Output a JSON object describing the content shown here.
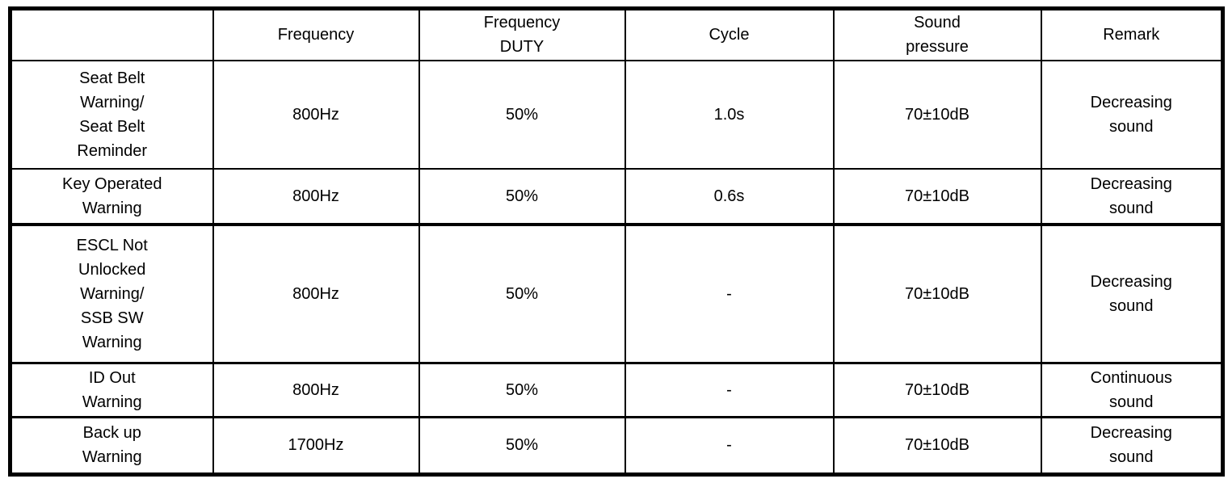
{
  "page": {
    "background_color": "#ffffff",
    "border_color": "#000000",
    "text_color": "#000000"
  },
  "table": {
    "headers": [
      "",
      "Frequency",
      "Frequency\nDUTY",
      "Cycle",
      "Sound\npressure",
      "Remark"
    ],
    "rows": [
      {
        "label": "Seat Belt\nWarning/\nSeat Belt\nReminder",
        "frequency": "800Hz",
        "frequency_duty": "50%",
        "cycle": "1.0s",
        "sound_pressure": "70±10dB",
        "remark": "Decreasing\nsound"
      },
      {
        "label": "Key Operated\nWarning",
        "frequency": "800Hz",
        "frequency_duty": "50%",
        "cycle": "0.6s",
        "sound_pressure": "70±10dB",
        "remark": "Decreasing\nsound"
      },
      {
        "label": "ESCL Not\nUnlocked\nWarning/\nSSB SW\nWarning",
        "frequency": "800Hz",
        "frequency_duty": "50%",
        "cycle": "-",
        "sound_pressure": "70±10dB",
        "remark": "Decreasing\nsound"
      },
      {
        "label": "ID Out\nWarning",
        "frequency": "800Hz",
        "frequency_duty": "50%",
        "cycle": "-",
        "sound_pressure": "70±10dB",
        "remark": "Continuous\nsound"
      },
      {
        "label": "Back up\nWarning",
        "frequency": "1700Hz",
        "frequency_duty": "50%",
        "cycle": "-",
        "sound_pressure": "70±10dB",
        "remark": "Decreasing\nsound"
      }
    ]
  }
}
